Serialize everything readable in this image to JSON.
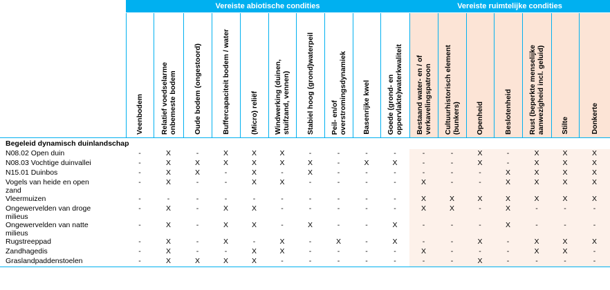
{
  "groups": {
    "abiotic": "Vereiste abiotische condities",
    "spatial": "Vereiste ruimtelijke condities"
  },
  "columns": [
    {
      "label": "Veenbodem",
      "group": "abiotic"
    },
    {
      "label": "Relatief voedselarme\nonbemeste bodem",
      "group": "abiotic"
    },
    {
      "label": "Oude bodem (ongestoord)",
      "group": "abiotic"
    },
    {
      "label": "Buffercapaciteit bodem / water",
      "group": "abiotic"
    },
    {
      "label": "(Micro) reliëf",
      "group": "abiotic"
    },
    {
      "label": "Windwerking (duinen,\nstuifzand, vennen)",
      "group": "abiotic"
    },
    {
      "label": "Stabiel hoog (grond)waterpeil",
      "group": "abiotic"
    },
    {
      "label": "Peil- en/of\noverstromingsdynamiek",
      "group": "abiotic"
    },
    {
      "label": "Basenrijke kwel",
      "group": "abiotic"
    },
    {
      "label": "Goede (grond- en\noppervlakte)waterkwaliteit",
      "group": "abiotic"
    },
    {
      "label": "Bestaand water- en / of\nverkavelingspatroon",
      "group": "spatial"
    },
    {
      "label": "Cultuurhistorisch element\n(bunkers)",
      "group": "spatial"
    },
    {
      "label": "Openheid",
      "group": "spatial"
    },
    {
      "label": "Beslotenheid",
      "group": "spatial"
    },
    {
      "label": "Rust (beperkte menselijke\naanwezigheid incl. geluid)",
      "group": "spatial"
    },
    {
      "label": "Stilte",
      "group": "spatial"
    },
    {
      "label": "Donkerte",
      "group": "spatial"
    }
  ],
  "section": "Begeleid dynamisch duinlandschap",
  "rows": [
    {
      "name": "N08.02 Open duin",
      "values": [
        "-",
        "X",
        "-",
        "X",
        "X",
        "X",
        "-",
        "-",
        "-",
        "-",
        "-",
        "-",
        "X",
        "-",
        "X",
        "X",
        "X"
      ]
    },
    {
      "name": "N08.03 Vochtige duinvallei",
      "values": [
        "-",
        "X",
        "X",
        "X",
        "X",
        "X",
        "X",
        "-",
        "X",
        "X",
        "-",
        "-",
        "X",
        "-",
        "X",
        "X",
        "X"
      ]
    },
    {
      "name": "N15.01 Duinbos",
      "values": [
        "-",
        "X",
        "X",
        "-",
        "X",
        "-",
        "X",
        "-",
        "-",
        "-",
        "-",
        "-",
        "-",
        "X",
        "X",
        "X",
        "X"
      ]
    },
    {
      "name": "Vogels van heide en open\nzand",
      "values": [
        "-",
        "X",
        "-",
        "-",
        "X",
        "X",
        "-",
        "-",
        "-",
        "-",
        "X",
        "-",
        "-",
        "X",
        "X",
        "X",
        "X"
      ]
    },
    {
      "name": "Vleermuizen",
      "values": [
        "-",
        "-",
        "-",
        "-",
        "-",
        "-",
        "-",
        "-",
        "-",
        "-",
        "X",
        "X",
        "X",
        "X",
        "X",
        "X",
        "X"
      ]
    },
    {
      "name": "Ongewervelden van droge\nmilieus",
      "values": [
        "-",
        "X",
        "-",
        "X",
        "X",
        "-",
        "-",
        "-",
        "-",
        "-",
        "X",
        "X",
        "-",
        "X",
        "-",
        "-",
        "-"
      ]
    },
    {
      "name": "Ongewervelden van natte\nmilieus",
      "values": [
        "-",
        "X",
        "-",
        "X",
        "X",
        "-",
        "X",
        "-",
        "-",
        "X",
        "-",
        "-",
        "-",
        "X",
        "-",
        "-",
        "-"
      ]
    },
    {
      "name": "Rugstreeppad",
      "values": [
        "-",
        "X",
        "-",
        "X",
        "-",
        "X",
        "-",
        "X",
        "-",
        "X",
        "-",
        "-",
        "X",
        "-",
        "X",
        "X",
        "X"
      ]
    },
    {
      "name": "Zandhagedis",
      "values": [
        "-",
        "X",
        "-",
        "-",
        "X",
        "X",
        "-",
        "-",
        "-",
        "-",
        "X",
        "-",
        "-",
        "-",
        "X",
        "X",
        "-"
      ]
    },
    {
      "name": "Graslandpaddenstoelen",
      "values": [
        "-",
        "X",
        "X",
        "X",
        "X",
        "-",
        "-",
        "-",
        "-",
        "-",
        "-",
        "-",
        "X",
        "-",
        "-",
        "-",
        "-"
      ]
    }
  ]
}
